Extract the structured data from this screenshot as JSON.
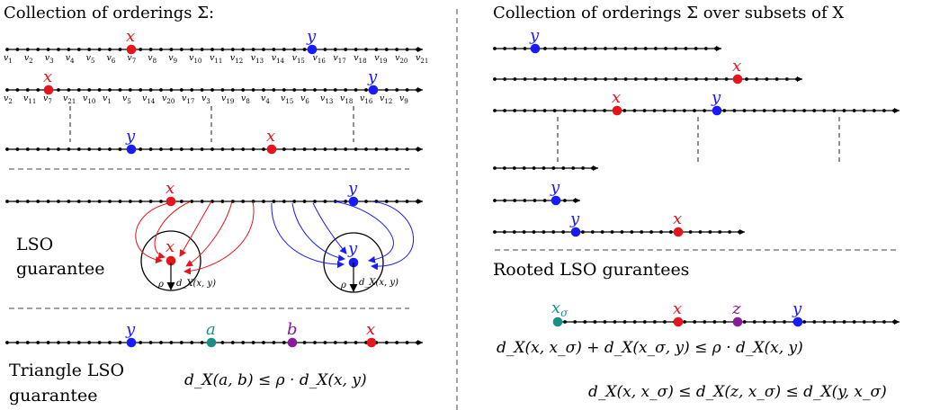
{
  "left_panel": {
    "title": "Collection of orderings Σ:",
    "row1_vertices": [
      "v1",
      "v2",
      "v3",
      "v4",
      "v5",
      "v6",
      "v7",
      "v8",
      "v9",
      "v10",
      "v11",
      "v12",
      "v13",
      "v14",
      "v15",
      "v16",
      "v17",
      "v18",
      "v19",
      "v20",
      "v21"
    ],
    "row2_vertices": [
      "v2",
      "v11",
      "v7",
      "v21",
      "v10",
      "v1",
      "v5",
      "v14",
      "v20",
      "v17",
      "v3",
      "v19",
      "v8",
      "v4",
      "v15",
      "v6",
      "v13",
      "v18",
      "v16",
      "v12",
      "v9"
    ],
    "label_x": "x",
    "label_y": "y",
    "label_a": "a",
    "label_b": "b",
    "lso_label_line1": "LSO",
    "lso_label_line2": "guarantee",
    "rho_label": "ρ",
    "ball_label": "d_X(x, y)",
    "triangle_label_line1": "Triangle LSO",
    "triangle_label_line2": "guarantee",
    "triangle_formula": "d_X(a, b) ≤ ρ · d_X(x, y)"
  },
  "right_panel": {
    "title": "Collection of orderings Σ over subsets of X",
    "rooted_title": "Rooted LSO gurantees",
    "label_xsigma": "x_σ",
    "label_z": "z",
    "formula1": "d_X(x, x_σ) + d_X(x_σ, y) ≤ ρ · d_X(x, y)",
    "formula2": "d_X(x, x_σ) ≤ d_X(z, x_σ) ≤ d_X(y, x_σ)"
  },
  "colors": {
    "x": "#e8141b",
    "y": "#1a1aff",
    "a": "#1a8f86",
    "b": "#8a1a9b",
    "xsigma": "#1a8f86",
    "z": "#8a1a9b",
    "line": "#000000"
  }
}
